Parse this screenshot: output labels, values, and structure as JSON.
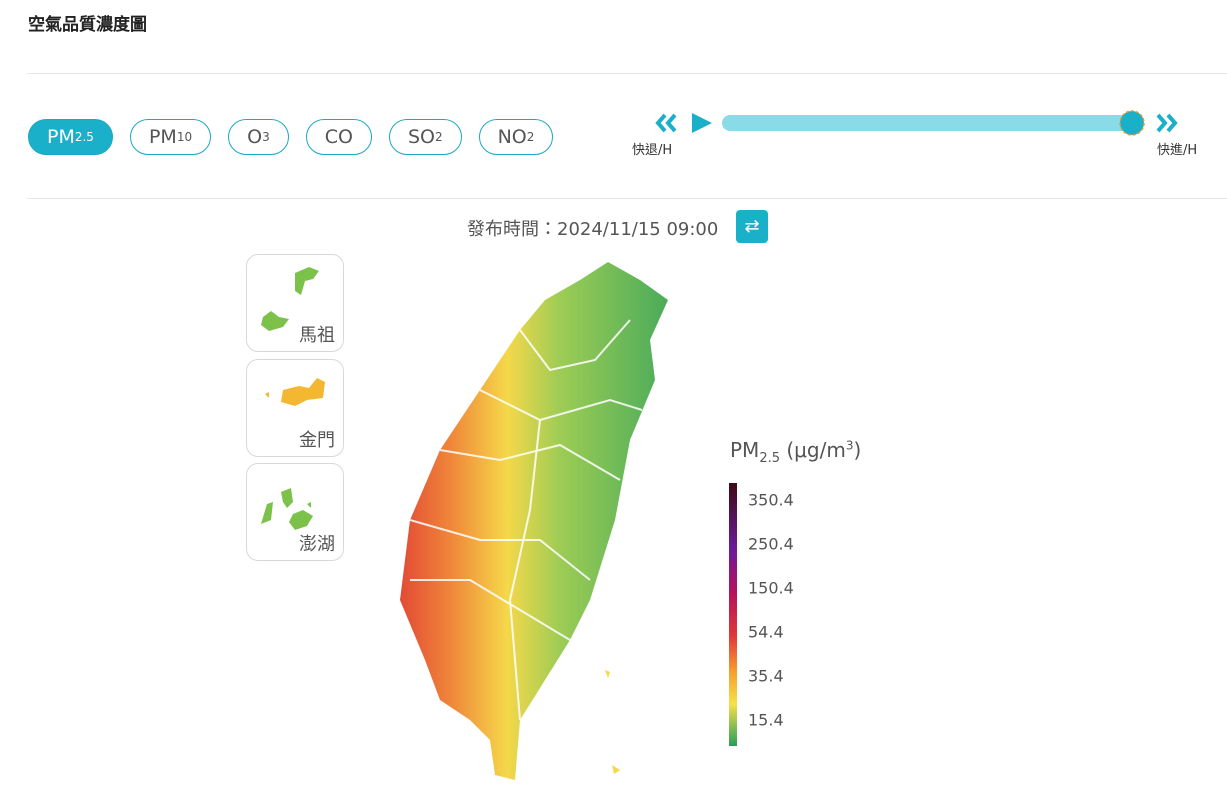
{
  "header": {
    "title": "空氣品質濃度圖"
  },
  "pollutants": [
    {
      "label": "PM",
      "sub": "2.5",
      "active": true
    },
    {
      "label": "PM",
      "sub": "10"
    },
    {
      "label": "O",
      "sub": "3"
    },
    {
      "label": "CO"
    },
    {
      "label": "SO",
      "sub": "2"
    },
    {
      "label": "NO",
      "sub": "2"
    }
  ],
  "playback": {
    "rewind": "快退/H",
    "forward": "快進/H"
  },
  "release_time": "發布時間：2024/11/15 09:00",
  "islands": [
    "馬祖",
    "金門",
    "澎湖"
  ],
  "legend": {
    "title": "PM",
    "title_sub": "2.5",
    "unit": " (μg/m",
    "unit_sup": "3",
    "unit_end": ")",
    "ticks": [
      350.4,
      250.4,
      150.4,
      54.4,
      35.4,
      15.4
    ]
  }
}
